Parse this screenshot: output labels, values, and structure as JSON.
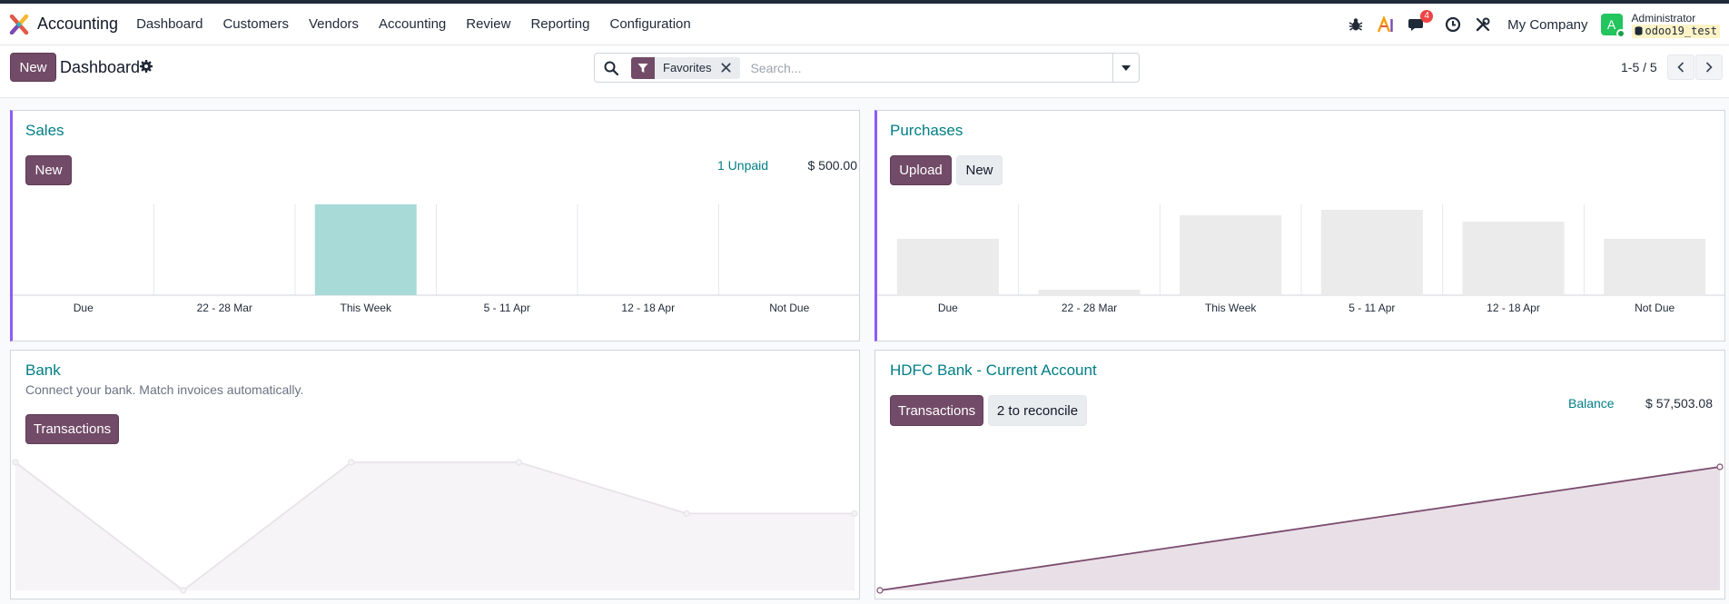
{
  "app": {
    "name": "Accounting"
  },
  "menu": [
    "Dashboard",
    "Customers",
    "Vendors",
    "Accounting",
    "Review",
    "Reporting",
    "Configuration"
  ],
  "systray": {
    "icons": [
      "bug-icon",
      "ai-icon",
      "chat-icon",
      "clock-icon",
      "tools-icon"
    ],
    "messages_count": "4",
    "company": "My Company",
    "avatar_letter": "A",
    "user_name": "Administrator",
    "database": "odoo19_test"
  },
  "control_panel": {
    "new_label": "New",
    "title": "Dashboard",
    "search_facet": "Favorites",
    "search_placeholder": "Search...",
    "pager": "1-5 / 5"
  },
  "colors": {
    "primary": "#714b67",
    "link": "#017e84",
    "accent": "#8b5cf6",
    "sales_bar": "#a8dad8",
    "purchase_bar": "#ebebeb",
    "bank_line": "#e8e3e8",
    "hdfc_line": "#7a4c6e"
  },
  "sales": {
    "title": "Sales",
    "new_label": "New",
    "unpaid_label": "1 Unpaid",
    "unpaid_amount": "$ 500.00",
    "chart_data": {
      "type": "bar",
      "categories": [
        "Due",
        "22 - 28 Mar",
        "This Week",
        "5 - 11 Apr",
        "12 - 18 Apr",
        "Not Due"
      ],
      "values": [
        0,
        0,
        500,
        0,
        0,
        0
      ],
      "ylim": [
        0,
        500
      ]
    }
  },
  "purchases": {
    "title": "Purchases",
    "upload_label": "Upload",
    "new_label": "New",
    "chart_data": {
      "type": "bar",
      "categories": [
        "Due",
        "22 - 28 Mar",
        "This Week",
        "5 - 11 Apr",
        "12 - 18 Apr",
        "Not Due"
      ],
      "values": [
        62,
        6,
        88,
        94,
        81,
        62
      ],
      "ylim": [
        0,
        100
      ]
    }
  },
  "bank": {
    "title": "Bank",
    "subtitle": "Connect your bank. Match invoices automatically.",
    "transactions_label": "Transactions",
    "chart_data": {
      "type": "area",
      "values": [
        100,
        0,
        100,
        100,
        60,
        60
      ],
      "ylim": [
        0,
        100
      ]
    }
  },
  "hdfc": {
    "title": "HDFC Bank - Current Account",
    "transactions_label": "Transactions",
    "reconcile_label": "2 to reconcile",
    "balance_label": "Balance",
    "balance_amount": "$ 57,503.08",
    "chart_data": {
      "type": "area",
      "values": [
        0,
        57503.08
      ],
      "ylim": [
        0,
        57503.08
      ]
    }
  }
}
